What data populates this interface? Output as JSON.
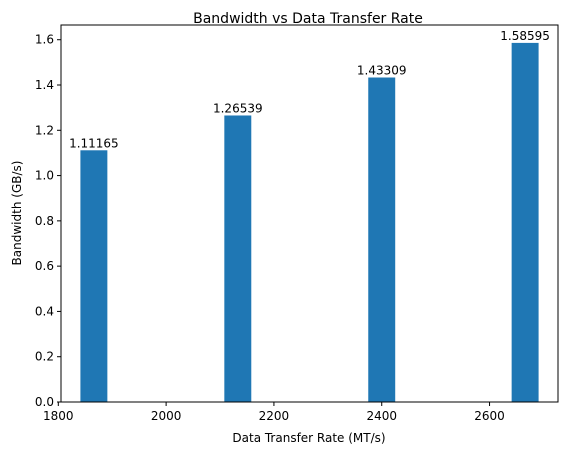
{
  "chart_data": {
    "type": "bar",
    "title": "Bandwidth vs Data Transfer Rate",
    "xlabel": "Data Transfer Rate (MT/s)",
    "ylabel": "Bandwidth (GB/s)",
    "x": [
      1866,
      2133,
      2400,
      2666
    ],
    "values": [
      1.11165,
      1.26539,
      1.43309,
      1.58595
    ],
    "value_labels": [
      "1.11165",
      "1.26539",
      "1.43309",
      "1.58595"
    ],
    "bar_width": 50,
    "bar_color": "#1f77b4",
    "xlim": [
      1805,
      2727
    ],
    "ylim": [
      0,
      1.665
    ],
    "xticks": [
      1800,
      2000,
      2200,
      2400,
      2600
    ],
    "yticks": [
      0.0,
      0.2,
      0.4,
      0.6,
      0.8,
      1.0,
      1.2,
      1.4,
      1.6
    ],
    "ytick_labels": [
      "0.0",
      "0.2",
      "0.4",
      "0.6",
      "0.8",
      "1.0",
      "1.2",
      "1.4",
      "1.6"
    ],
    "grid": false,
    "legend": false
  }
}
